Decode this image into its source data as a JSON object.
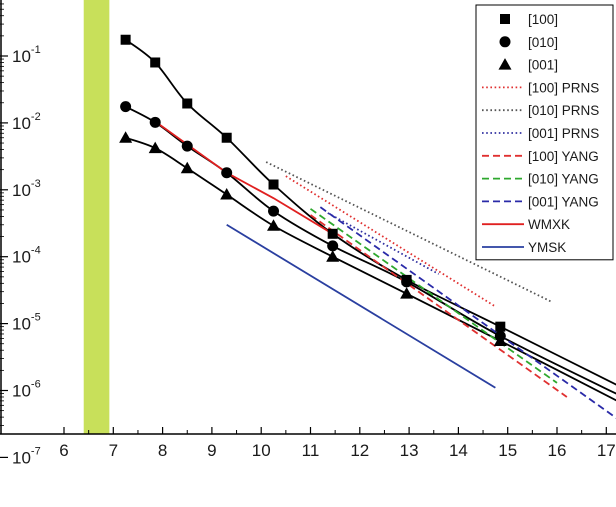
{
  "chart_data": {
    "type": "line",
    "title": "",
    "xlabel": "",
    "ylabel": "",
    "yscale": "log",
    "xlim": [
      6,
      17.6
    ],
    "ylim_log10": [
      -7,
      0
    ],
    "x_ticks": [
      6,
      7,
      8,
      9,
      10,
      11,
      12,
      13,
      14,
      15,
      16,
      17
    ],
    "y_ticks": [
      {
        "base": "10",
        "exp": "-1",
        "log10": -1
      },
      {
        "base": "10",
        "exp": "-2",
        "log10": -2
      },
      {
        "base": "10",
        "exp": "-3",
        "log10": -3
      },
      {
        "base": "10",
        "exp": "-4",
        "log10": -4
      },
      {
        "base": "10",
        "exp": "-5",
        "log10": -5
      },
      {
        "base": "10",
        "exp": "-6",
        "log10": -6
      },
      {
        "base": "10",
        "exp": "-7",
        "log10": -7
      }
    ],
    "shaded_band": {
      "x_range": [
        6.4,
        6.92
      ],
      "color": "#c8e05a"
    },
    "legend": {
      "position": "top-right"
    },
    "series": [
      {
        "name": "[100]",
        "kind": "marker-line",
        "marker": "square",
        "color": "#000000",
        "x": [
          7.25,
          7.85,
          8.5,
          9.3,
          10.25,
          11.45,
          12.95,
          14.85,
          17.5
        ],
        "y": [
          0.175,
          0.08,
          0.0195,
          0.006,
          0.0012,
          0.00022,
          4.5e-05,
          9e-06,
          9.5e-07
        ]
      },
      {
        "name": "[010]",
        "kind": "marker-line",
        "marker": "circle",
        "color": "#000000",
        "x": [
          7.25,
          7.85,
          8.5,
          9.3,
          10.25,
          11.45,
          12.95,
          14.85,
          17.5
        ],
        "y": [
          0.0175,
          0.0102,
          0.0045,
          0.0018,
          0.00048,
          0.000145,
          4.2e-05,
          6.5e-06,
          7e-07
        ]
      },
      {
        "name": "[001]",
        "kind": "marker-line",
        "marker": "triangle",
        "color": "#000000",
        "x": [
          7.25,
          7.85,
          8.5,
          9.3,
          10.25,
          11.45,
          12.95,
          14.85,
          17.5
        ],
        "y": [
          0.006,
          0.0042,
          0.0021,
          0.00085,
          0.00029,
          0.0001,
          2.8e-05,
          5.5e-06,
          5.5e-07
        ]
      },
      {
        "name": "[100] PRNS",
        "kind": "dotted",
        "color": "#e03030",
        "x": [
          10.5,
          14.75
        ],
        "y": [
          0.0016,
          1.8e-05
        ]
      },
      {
        "name": "[010] PRNS",
        "kind": "dotted",
        "color": "#555555",
        "x": [
          10.1,
          15.9
        ],
        "y": [
          0.0026,
          2.1e-05
        ]
      },
      {
        "name": "[001] PRNS",
        "kind": "dotted",
        "color": "#3030a0",
        "x": [
          11.35,
          13.6
        ],
        "y": [
          0.00045,
          5.5e-05
        ]
      },
      {
        "name": "[100] YANG",
        "kind": "dashed",
        "color": "#e03030",
        "x": [
          11.0,
          16.2
        ],
        "y": [
          0.00042,
          8e-07
        ]
      },
      {
        "name": "[010] YANG",
        "kind": "dashed",
        "color": "#2ea82e",
        "x": [
          11.0,
          16.0
        ],
        "y": [
          0.00052,
          1.3e-06
        ]
      },
      {
        "name": "[001] YANG",
        "kind": "dashed",
        "color": "#2a2aa8",
        "x": [
          11.2,
          17.6
        ],
        "y": [
          0.00055,
          2.4e-07
        ]
      },
      {
        "name": "WMXK",
        "kind": "solid",
        "color": "#e02020",
        "x": [
          7.85,
          9.3,
          10.25,
          11.45
        ],
        "y": [
          0.0105,
          0.0018,
          0.00075,
          0.00022
        ]
      },
      {
        "name": "YMSK",
        "kind": "solid",
        "color": "#2a3fa0",
        "x": [
          9.3,
          14.75
        ],
        "y": [
          0.0003,
          1.1e-06
        ]
      }
    ]
  }
}
